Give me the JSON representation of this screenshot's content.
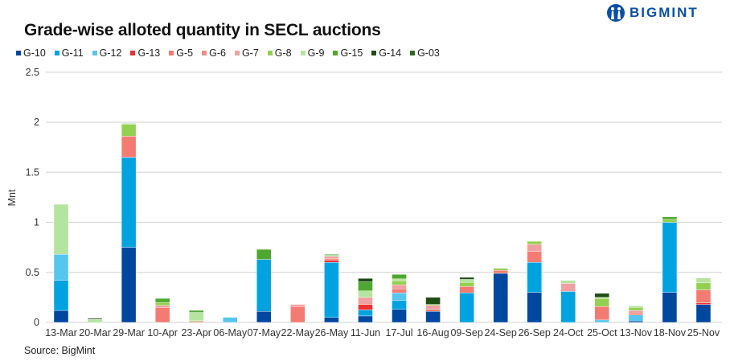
{
  "header": {
    "logo_text": "BIGMINT"
  },
  "footer": {
    "source": "Source: BigMint"
  },
  "chart_data": {
    "type": "bar",
    "stacked": true,
    "title": "Grade-wise alloted quantity in SECL auctions",
    "xlabel": "",
    "ylabel": "Mnt",
    "ylim": [
      0,
      2.5
    ],
    "yticks": [
      "0",
      "0.5",
      "1",
      "1.5",
      "2",
      "2.5"
    ],
    "grid": true,
    "legend_position": "top",
    "categories": [
      "13-Mar",
      "20-Mar",
      "29-Mar",
      "10-Apr",
      "23-Apr",
      "06-May",
      "07-May",
      "22-May",
      "26-May",
      "11-Jun",
      "17-Jul",
      "16-Aug",
      "09-Sep",
      "24-Sep",
      "26-Sep",
      "24-Oct",
      "25-Oct",
      "13-Nov",
      "18-Nov",
      "25-Nov"
    ],
    "series": [
      {
        "name": "G-10",
        "color": "#0047A0",
        "values": [
          0.12,
          0,
          0.75,
          0,
          0,
          0,
          0.11,
          0,
          0.05,
          0.065,
          0.13,
          0.11,
          0,
          0.49,
          0.3,
          0,
          0,
          0.015,
          0.3,
          0.18
        ]
      },
      {
        "name": "G-11",
        "color": "#00A3E0",
        "values": [
          0.3,
          0,
          0.9,
          0,
          0,
          0,
          0.52,
          0,
          0.55,
          0.06,
          0.09,
          0,
          0.295,
          0,
          0.3,
          0.31,
          0,
          0,
          0.7,
          0
        ]
      },
      {
        "name": "G-12",
        "color": "#56C5F0",
        "values": [
          0.26,
          0,
          0,
          0,
          0,
          0.05,
          0,
          0,
          0,
          0,
          0.075,
          0,
          0,
          0,
          0,
          0,
          0.025,
          0.06,
          0,
          0
        ]
      },
      {
        "name": "G-13",
        "color": "#EE3030",
        "values": [
          0,
          0,
          0,
          0,
          0,
          0,
          0,
          0,
          0.02,
          0.055,
          0,
          0,
          0,
          0,
          0,
          0,
          0,
          0,
          0,
          0.015
        ]
      },
      {
        "name": "G-5",
        "color": "#F47B72",
        "values": [
          0,
          0,
          0.21,
          0.15,
          0.01,
          0,
          0,
          0.16,
          0,
          0,
          0.04,
          0.02,
          0.065,
          0.03,
          0.11,
          0,
          0.135,
          0.02,
          0,
          0.13
        ]
      },
      {
        "name": "G-6",
        "color": "#F88A80",
        "values": [
          0,
          0,
          0,
          0,
          0,
          0,
          0,
          0,
          0.02,
          0,
          0,
          0,
          0,
          0,
          0,
          0,
          0,
          0,
          0,
          0
        ]
      },
      {
        "name": "G-7",
        "color": "#F0A0A0",
        "values": [
          0,
          0,
          0,
          0.02,
          0,
          0,
          0,
          0.02,
          0.02,
          0.07,
          0.04,
          0.04,
          0,
          0,
          0.07,
          0.08,
          0,
          0.025,
          0,
          0
        ]
      },
      {
        "name": "G-8",
        "color": "#92D050",
        "values": [
          0,
          0,
          0.12,
          0.03,
          0.01,
          0,
          0,
          0,
          0,
          0,
          0.04,
          0.01,
          0.04,
          0.02,
          0.03,
          0,
          0.08,
          0.03,
          0.03,
          0.07
        ]
      },
      {
        "name": "G-9",
        "color": "#B5E4A0",
        "values": [
          0.5,
          0.03,
          0.01,
          0,
          0.08,
          0,
          0,
          0,
          0.01,
          0.065,
          0.02,
          0,
          0.03,
          0,
          0,
          0.03,
          0.01,
          0.015,
          0,
          0.05
        ]
      },
      {
        "name": "G-15",
        "color": "#4EA72E",
        "values": [
          0,
          0,
          0,
          0.04,
          0.02,
          0,
          0.1,
          0,
          0.01,
          0.09,
          0.045,
          0,
          0,
          0,
          0,
          0,
          0,
          0,
          0.025,
          0
        ]
      },
      {
        "name": "G-14",
        "color": "#1E4D14",
        "values": [
          0,
          0.01,
          0,
          0,
          0,
          0,
          0,
          0,
          0,
          0.035,
          0,
          0.07,
          0.02,
          0,
          0,
          0,
          0.04,
          0,
          0,
          0
        ]
      },
      {
        "name": "G-03",
        "color": "#2E6B1E",
        "values": [
          0,
          0,
          0,
          0,
          0,
          0,
          0,
          0,
          0,
          0,
          0,
          0,
          0,
          0,
          0,
          0,
          0,
          0,
          0,
          0
        ]
      }
    ]
  }
}
